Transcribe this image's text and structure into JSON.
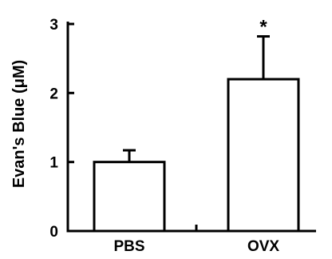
{
  "chart_data": {
    "type": "bar",
    "ylabel": "Evan's Blue (μM)",
    "categories": [
      "PBS",
      "OVX"
    ],
    "values": [
      1.0,
      2.2
    ],
    "error_upper": [
      1.17,
      2.82
    ],
    "ylim": [
      0,
      3
    ],
    "yticks": [
      0,
      1,
      2,
      3
    ],
    "ytick_labels": [
      "0",
      "1",
      "2",
      "3"
    ],
    "annotations": [
      {
        "category": "OVX",
        "text": "*"
      }
    ],
    "grid": false,
    "colors": {
      "bar_fill": "#ffffff",
      "bar_stroke": "#000000",
      "axis": "#000000"
    }
  }
}
